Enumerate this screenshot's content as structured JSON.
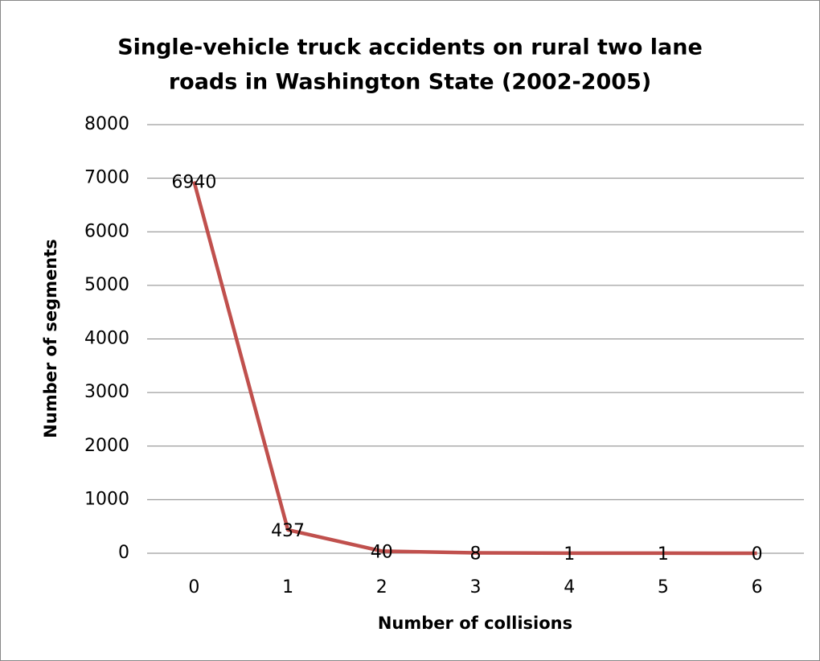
{
  "chart_data": {
    "type": "line",
    "title": [
      "Single-vehicle truck accidents on rural two lane",
      "roads in Washington State (2002-2005)"
    ],
    "x_label": "Number of collisions",
    "y_label": "Number of segments",
    "categories": [
      "0",
      "1",
      "2",
      "3",
      "4",
      "5",
      "6"
    ],
    "series": [
      {
        "name": "Number of segments",
        "color": "#c0504d",
        "values": [
          6940,
          437,
          40,
          8,
          1,
          1,
          0
        ]
      }
    ],
    "ylim": [
      0,
      8000
    ],
    "yticks": [
      0,
      1000,
      2000,
      3000,
      4000,
      5000,
      6000,
      7000,
      8000
    ],
    "grid": true,
    "legend": false
  }
}
